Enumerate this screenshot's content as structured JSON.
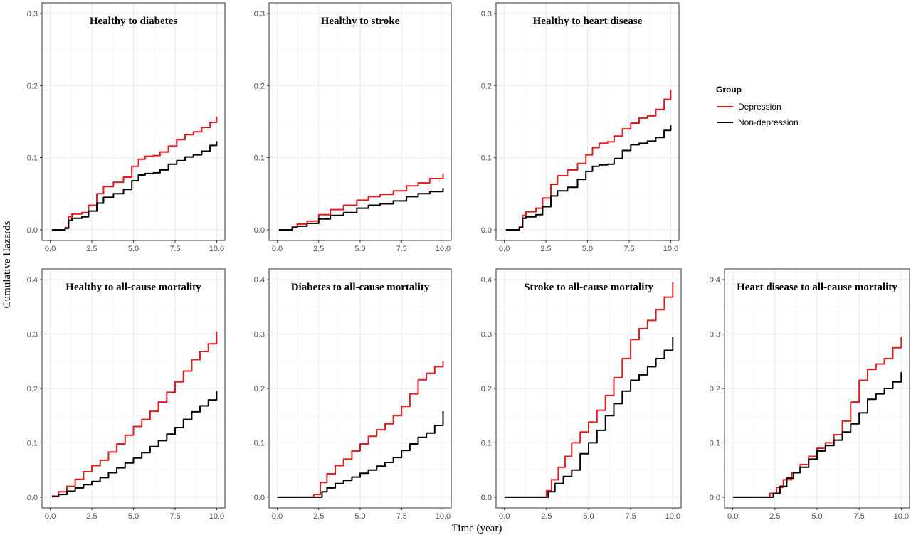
{
  "chart_data": {
    "type": "line",
    "xlabel": "Time (year)",
    "ylabel": "Cumulative Hazards",
    "legend": {
      "title": "Group",
      "position": "right",
      "entries": [
        {
          "name": "Depression",
          "color": "#e41a1c"
        },
        {
          "name": "Non-depression",
          "color": "#000000"
        }
      ]
    },
    "x_ticks": [
      0.0,
      2.5,
      5.0,
      7.5,
      10.0
    ],
    "x_tick_labels": [
      "0.0",
      "2.5",
      "5.0",
      "7.5",
      "10.0"
    ],
    "panels": [
      {
        "title": "Healthy to diabetes",
        "xlim": [
          0,
          10
        ],
        "ylim": [
          0,
          0.3
        ],
        "y_ticks": [
          0.0,
          0.1,
          0.2,
          0.3
        ],
        "y_tick_labels": [
          "0.0",
          "0.1",
          "0.2",
          "0.3"
        ],
        "series": [
          {
            "name": "Depression",
            "x": [
              0.1,
              0.7,
              0.9,
              1.1,
              1.3,
              1.9,
              2.3,
              2.8,
              3.2,
              3.8,
              4.4,
              4.9,
              5.3,
              5.7,
              6.2,
              6.6,
              7.1,
              7.6,
              8.1,
              8.6,
              9.1,
              9.6,
              10.0
            ],
            "y": [
              0.0,
              0.0,
              0.003,
              0.018,
              0.022,
              0.024,
              0.034,
              0.05,
              0.06,
              0.066,
              0.073,
              0.088,
              0.098,
              0.102,
              0.103,
              0.108,
              0.116,
              0.125,
              0.132,
              0.136,
              0.142,
              0.149,
              0.157
            ]
          },
          {
            "name": "Non-depression",
            "x": [
              0.1,
              0.7,
              0.9,
              1.1,
              1.3,
              1.9,
              2.3,
              2.8,
              3.2,
              3.8,
              4.4,
              4.9,
              5.3,
              5.7,
              6.2,
              6.6,
              7.1,
              7.6,
              8.1,
              8.6,
              9.1,
              9.6,
              10.0
            ],
            "y": [
              0.0,
              0.0,
              0.002,
              0.013,
              0.016,
              0.018,
              0.026,
              0.037,
              0.045,
              0.05,
              0.056,
              0.068,
              0.076,
              0.078,
              0.079,
              0.083,
              0.091,
              0.096,
              0.101,
              0.104,
              0.109,
              0.117,
              0.123
            ]
          }
        ]
      },
      {
        "title": "Healthy to stroke",
        "xlim": [
          0,
          10
        ],
        "ylim": [
          0,
          0.3
        ],
        "y_ticks": [
          0.0,
          0.1,
          0.2,
          0.3
        ],
        "y_tick_labels": [
          "0.0",
          "0.1",
          "0.2",
          "0.3"
        ],
        "series": [
          {
            "name": "Depression",
            "x": [
              0.1,
              0.7,
              0.9,
              1.2,
              1.8,
              2.5,
              3.2,
              4.0,
              4.8,
              5.5,
              6.2,
              7.0,
              7.8,
              8.5,
              9.2,
              10.0
            ],
            "y": [
              0.0,
              0.0,
              0.004,
              0.008,
              0.012,
              0.021,
              0.028,
              0.034,
              0.041,
              0.046,
              0.049,
              0.054,
              0.061,
              0.065,
              0.071,
              0.078
            ]
          },
          {
            "name": "Non-depression",
            "x": [
              0.1,
              0.7,
              0.9,
              1.2,
              1.8,
              2.5,
              3.2,
              4.0,
              4.8,
              5.5,
              6.2,
              7.0,
              7.8,
              8.5,
              9.2,
              10.0
            ],
            "y": [
              0.0,
              0.0,
              0.003,
              0.005,
              0.009,
              0.015,
              0.02,
              0.024,
              0.03,
              0.034,
              0.036,
              0.04,
              0.046,
              0.05,
              0.053,
              0.058
            ]
          }
        ]
      },
      {
        "title": "Healthy to heart disease",
        "xlim": [
          0,
          10
        ],
        "ylim": [
          0,
          0.3
        ],
        "y_ticks": [
          0.0,
          0.1,
          0.2,
          0.3
        ],
        "y_tick_labels": [
          "0.0",
          "0.1",
          "0.2",
          "0.3"
        ],
        "series": [
          {
            "name": "Depression",
            "x": [
              0.1,
              0.7,
              0.9,
              1.1,
              1.3,
              1.9,
              2.3,
              2.8,
              3.2,
              3.8,
              4.4,
              4.9,
              5.3,
              5.7,
              6.2,
              6.6,
              7.1,
              7.6,
              8.1,
              8.6,
              9.1,
              9.6,
              10.0
            ],
            "y": [
              0.0,
              0.0,
              0.004,
              0.02,
              0.025,
              0.03,
              0.044,
              0.063,
              0.075,
              0.083,
              0.092,
              0.104,
              0.114,
              0.12,
              0.122,
              0.13,
              0.14,
              0.148,
              0.155,
              0.158,
              0.167,
              0.181,
              0.194
            ]
          },
          {
            "name": "Non-depression",
            "x": [
              0.1,
              0.7,
              0.9,
              1.1,
              1.3,
              1.9,
              2.3,
              2.8,
              3.2,
              3.8,
              4.4,
              4.9,
              5.3,
              5.7,
              6.2,
              6.6,
              7.1,
              7.6,
              8.1,
              8.6,
              9.1,
              9.6,
              10.0
            ],
            "y": [
              0.0,
              0.0,
              0.003,
              0.016,
              0.018,
              0.021,
              0.032,
              0.047,
              0.054,
              0.059,
              0.07,
              0.081,
              0.088,
              0.09,
              0.091,
              0.099,
              0.11,
              0.118,
              0.12,
              0.123,
              0.128,
              0.138,
              0.145
            ]
          }
        ]
      },
      {
        "title": "Healthy to all-cause mortality",
        "xlim": [
          0,
          10
        ],
        "ylim": [
          0,
          0.4
        ],
        "y_ticks": [
          0.0,
          0.1,
          0.2,
          0.3,
          0.4
        ],
        "y_tick_labels": [
          "0.0",
          "0.1",
          "0.2",
          "0.3",
          "0.4"
        ],
        "series": [
          {
            "name": "Depression",
            "x": [
              0.1,
              0.5,
              1.0,
              1.5,
              2.0,
              2.5,
              3.0,
              3.5,
              4.0,
              4.5,
              5.0,
              5.5,
              6.0,
              6.5,
              7.0,
              7.5,
              8.0,
              8.5,
              9.0,
              9.5,
              10.0
            ],
            "y": [
              0.002,
              0.01,
              0.02,
              0.033,
              0.047,
              0.058,
              0.068,
              0.083,
              0.098,
              0.114,
              0.13,
              0.143,
              0.158,
              0.175,
              0.193,
              0.212,
              0.232,
              0.253,
              0.268,
              0.282,
              0.305
            ]
          },
          {
            "name": "Non-depression",
            "x": [
              0.1,
              0.5,
              1.0,
              1.5,
              2.0,
              2.5,
              3.0,
              3.5,
              4.0,
              4.5,
              5.0,
              5.5,
              6.0,
              6.5,
              7.0,
              7.5,
              8.0,
              8.5,
              9.0,
              9.5,
              10.0
            ],
            "y": [
              0.001,
              0.005,
              0.011,
              0.017,
              0.023,
              0.029,
              0.036,
              0.045,
              0.054,
              0.063,
              0.072,
              0.082,
              0.093,
              0.104,
              0.116,
              0.128,
              0.143,
              0.157,
              0.168,
              0.179,
              0.195
            ]
          }
        ]
      },
      {
        "title": "Diabetes to all-cause mortality",
        "xlim": [
          0,
          10
        ],
        "ylim": [
          0,
          0.4
        ],
        "y_ticks": [
          0.0,
          0.1,
          0.2,
          0.3,
          0.4
        ],
        "y_tick_labels": [
          "0.0",
          "0.1",
          "0.2",
          "0.3",
          "0.4"
        ],
        "series": [
          {
            "name": "Depression",
            "x": [
              0.0,
              1.8,
              2.2,
              2.6,
              3.0,
              3.5,
              4.0,
              4.5,
              5.0,
              5.5,
              6.0,
              6.5,
              7.0,
              7.5,
              8.0,
              8.5,
              9.0,
              9.5,
              10.0
            ],
            "y": [
              0.0,
              0.0,
              0.005,
              0.027,
              0.043,
              0.058,
              0.07,
              0.085,
              0.098,
              0.112,
              0.124,
              0.135,
              0.15,
              0.167,
              0.19,
              0.216,
              0.228,
              0.24,
              0.25
            ]
          },
          {
            "name": "Non-depression",
            "x": [
              0.0,
              2.3,
              2.7,
              3.0,
              3.5,
              4.0,
              4.5,
              5.0,
              5.5,
              6.0,
              6.5,
              7.0,
              7.5,
              8.0,
              8.5,
              9.0,
              9.5,
              10.0
            ],
            "y": [
              0.0,
              0.0,
              0.01,
              0.017,
              0.025,
              0.031,
              0.037,
              0.044,
              0.05,
              0.057,
              0.064,
              0.073,
              0.086,
              0.098,
              0.11,
              0.118,
              0.132,
              0.158
            ]
          }
        ]
      },
      {
        "title": "Stroke to all-cause mortality",
        "xlim": [
          0,
          10
        ],
        "ylim": [
          0,
          0.4
        ],
        "y_ticks": [
          0.0,
          0.1,
          0.2,
          0.3,
          0.4
        ],
        "y_tick_labels": [
          "0.0",
          "0.1",
          "0.2",
          "0.3",
          "0.4"
        ],
        "series": [
          {
            "name": "Depression",
            "x": [
              0.0,
              2.2,
              2.5,
              2.8,
              3.2,
              3.6,
              4.0,
              4.5,
              5.0,
              5.5,
              6.0,
              6.5,
              7.0,
              7.5,
              8.0,
              8.5,
              9.0,
              9.5,
              10.0
            ],
            "y": [
              0.0,
              0.0,
              0.012,
              0.032,
              0.055,
              0.075,
              0.1,
              0.12,
              0.138,
              0.16,
              0.187,
              0.22,
              0.255,
              0.29,
              0.31,
              0.325,
              0.345,
              0.368,
              0.395
            ]
          },
          {
            "name": "Non-depression",
            "x": [
              0.0,
              2.3,
              2.6,
              3.0,
              3.5,
              4.0,
              4.5,
              5.0,
              5.5,
              6.0,
              6.5,
              7.0,
              7.5,
              8.0,
              8.5,
              9.0,
              9.5,
              10.0
            ],
            "y": [
              0.0,
              0.0,
              0.01,
              0.025,
              0.038,
              0.05,
              0.08,
              0.1,
              0.123,
              0.15,
              0.172,
              0.195,
              0.215,
              0.225,
              0.24,
              0.255,
              0.27,
              0.295
            ]
          }
        ]
      },
      {
        "title": "Heart disease to all-cause mortality",
        "xlim": [
          0,
          10
        ],
        "ylim": [
          0,
          0.4
        ],
        "y_ticks": [
          0.0,
          0.1,
          0.2,
          0.3,
          0.4
        ],
        "y_tick_labels": [
          "0.0",
          "0.1",
          "0.2",
          "0.3",
          "0.4"
        ],
        "series": [
          {
            "name": "Depression",
            "x": [
              0.0,
              1.8,
              2.2,
              2.6,
              3.0,
              3.5,
              4.0,
              4.5,
              5.0,
              5.5,
              6.0,
              6.5,
              7.0,
              7.5,
              8.0,
              8.5,
              9.0,
              9.5,
              10.0
            ],
            "y": [
              0.0,
              0.0,
              0.007,
              0.018,
              0.032,
              0.045,
              0.06,
              0.075,
              0.09,
              0.1,
              0.115,
              0.14,
              0.175,
              0.215,
              0.235,
              0.245,
              0.255,
              0.275,
              0.295
            ]
          },
          {
            "name": "Non-depression",
            "x": [
              0.0,
              2.0,
              2.4,
              2.8,
              3.2,
              3.6,
              4.0,
              4.5,
              5.0,
              5.5,
              6.0,
              6.5,
              7.0,
              7.5,
              8.0,
              8.5,
              9.0,
              9.5,
              10.0
            ],
            "y": [
              0.0,
              0.0,
              0.007,
              0.02,
              0.035,
              0.045,
              0.055,
              0.07,
              0.085,
              0.095,
              0.105,
              0.12,
              0.135,
              0.155,
              0.18,
              0.19,
              0.2,
              0.212,
              0.23
            ]
          }
        ]
      }
    ]
  }
}
